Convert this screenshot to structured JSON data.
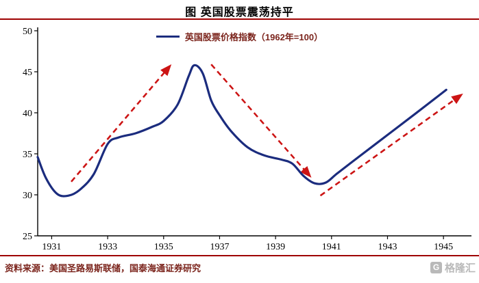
{
  "chart_data": {
    "type": "line",
    "title": "图 英国股票震荡持平",
    "legend": [
      "英国股票价格指数（1962年=100）"
    ],
    "legend_position": "top-center",
    "grid": false,
    "xlim": [
      1930.5,
      1946.0
    ],
    "ylim": [
      25,
      50
    ],
    "yticks": [
      25,
      30,
      35,
      40,
      45,
      50
    ],
    "xticks": [
      1931,
      1933,
      1935,
      1937,
      1939,
      1941,
      1943,
      1945
    ],
    "series": [
      {
        "name": "英国股票价格指数（1962年=100）",
        "color": "#1b2c7e",
        "x": [
          1930.5,
          1930.8,
          1931.2,
          1931.6,
          1932.0,
          1932.5,
          1933.0,
          1933.4,
          1934.0,
          1934.6,
          1935.0,
          1935.5,
          1935.9,
          1936.1,
          1936.4,
          1936.7,
          1937.0,
          1937.4,
          1938.0,
          1938.6,
          1939.2,
          1939.6,
          1940.0,
          1940.4,
          1940.8,
          1941.2,
          1942.0,
          1943.0,
          1944.0,
          1945.1
        ],
        "y": [
          34.6,
          32.0,
          30.1,
          29.9,
          30.6,
          32.5,
          36.2,
          37.0,
          37.5,
          38.3,
          39.0,
          41.0,
          44.5,
          45.8,
          44.8,
          41.5,
          39.7,
          37.8,
          35.8,
          34.8,
          34.3,
          33.8,
          32.3,
          31.4,
          31.5,
          32.6,
          34.7,
          37.3,
          39.9,
          42.8
        ]
      }
    ],
    "annotations": {
      "arrows": [
        {
          "x1": 1931.7,
          "y1": 31.6,
          "x2": 1935.2,
          "y2": 45.6,
          "direction": "up"
        },
        {
          "x1": 1936.7,
          "y1": 45.9,
          "x2": 1940.2,
          "y2": 32.4,
          "direction": "down"
        },
        {
          "x1": 1940.6,
          "y1": 29.9,
          "x2": 1945.6,
          "y2": 42.1,
          "direction": "up"
        }
      ],
      "arrow_style": "dashed"
    }
  },
  "footer": {
    "source": "资料来源：美国圣路易斯联储，国泰海通证券研究",
    "logo_text": "格隆汇",
    "logo_icon_glyph": "G"
  },
  "colors": {
    "line": "#1b2c7e",
    "arrow": "#cc1414",
    "rule": "#9e0000",
    "text_maroon": "#7b241c",
    "logo_gray": "#b9b9b9",
    "axis": "#000000"
  }
}
